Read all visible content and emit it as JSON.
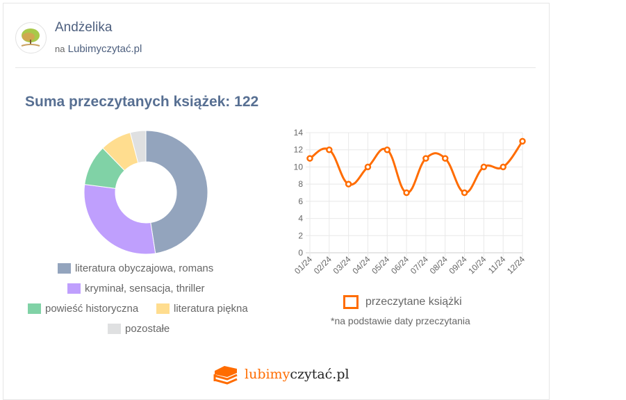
{
  "profile": {
    "name": "Andżelika",
    "prefix": "na",
    "site": "Lubimyczytać.pl"
  },
  "title": "Suma przeczytanych książek: 122",
  "donut": {
    "type": "pie",
    "slices": [
      {
        "label": "literatura obyczajowa, romans",
        "value": 58,
        "color": "#93a4bd"
      },
      {
        "label": "kryminał, sensacja, thriller",
        "value": 36,
        "color": "#bf9ffd"
      },
      {
        "label": "powieść historyczna",
        "value": 13,
        "color": "#80d2a6"
      },
      {
        "label": "literatura piękna",
        "value": 10,
        "color": "#ffdd8f"
      },
      {
        "label": "pozostałe",
        "value": 5,
        "color": "#dfe0e1"
      }
    ]
  },
  "chart_data": {
    "type": "line",
    "x": [
      "01/24",
      "02/24",
      "03/24",
      "04/24",
      "05/24",
      "06/24",
      "07/24",
      "08/24",
      "09/24",
      "10/24",
      "11/24",
      "12/24"
    ],
    "series": [
      {
        "name": "przeczytane książki",
        "values": [
          11,
          12,
          8,
          10,
          12,
          7,
          11,
          11,
          7,
          10,
          10,
          13
        ],
        "color": "#ff6c00"
      }
    ],
    "ylim": [
      0,
      14
    ],
    "yticks": [
      "0",
      "2",
      "4",
      "6",
      "8",
      "10",
      "12",
      "14"
    ],
    "grid": true,
    "legend": "bottom"
  },
  "note": "*na podstawie daty przeczytania",
  "footer": {
    "logo_a": "lubimy",
    "logo_b": "czytać.pl"
  }
}
